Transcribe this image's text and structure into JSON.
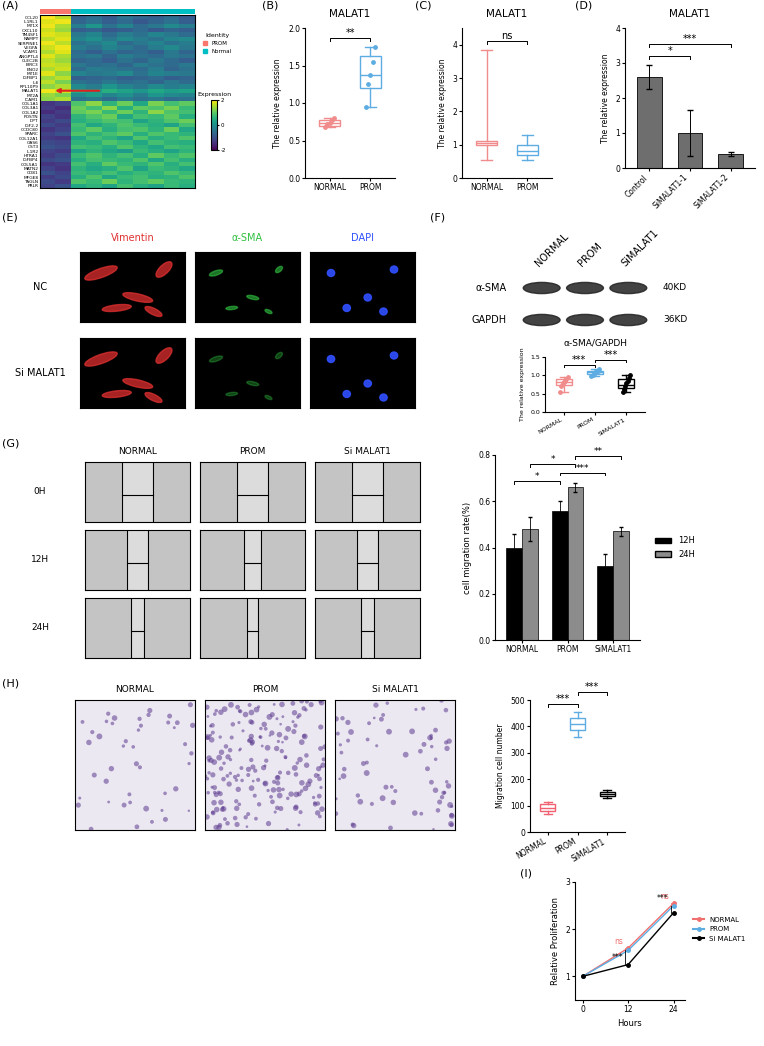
{
  "chart_data": [
    {
      "panel": "(A)",
      "type": "heatmap",
      "rows": [
        "CCL20",
        "IL1RL1",
        "MT1X",
        "CXCL10",
        "TM4SF1",
        "NAMPT",
        "SERPINE1",
        "VEGFA",
        "VCAM1",
        "ANGPTL4",
        "CLEC2B",
        "BIRC3",
        "ENO2",
        "MT1E",
        "IGFBP1",
        "IL6",
        "RPL10P9",
        "MALAT1",
        "MT2A",
        "ICAM1",
        "COL1A1",
        "COL3A1",
        "COL1A2",
        "POSTN",
        "DPT",
        "IGF2-2",
        "CCDC80",
        "SPARC",
        "COL12A1",
        "GAS6",
        "CST3",
        "IL1R2",
        "HTRA1",
        "IGFBP4",
        "COL5A1",
        "MATN2",
        "CD81",
        "MFGE8",
        "TAGLN",
        "PRLR"
      ],
      "column_groups": [
        "PROM",
        "PROM",
        "Normal",
        "Normal",
        "Normal",
        "Normal",
        "Normal",
        "Normal",
        "Normal",
        "Normal"
      ],
      "legend_title": "Identity",
      "series": [
        {
          "name": "PROM",
          "color": "#f8766d"
        },
        {
          "name": "Normal",
          "color": "#00bfc4"
        }
      ],
      "arrow": {
        "row": "MALAT1",
        "color": "#e02020"
      },
      "cells": [
        [
          2.0,
          1.6,
          -0.8,
          -0.6,
          -0.9,
          -0.5,
          -0.7,
          -0.8,
          -0.6,
          -0.9
        ],
        [
          1.8,
          1.9,
          -0.7,
          -0.5,
          -0.8,
          -0.6,
          -0.9,
          -0.7,
          -0.5,
          -0.8
        ],
        [
          1.9,
          1.5,
          -0.3,
          0.1,
          -0.5,
          -0.2,
          -0.6,
          -0.4,
          -0.1,
          -0.3
        ],
        [
          1.7,
          1.4,
          -0.8,
          -0.7,
          -0.9,
          -0.8,
          -0.6,
          -0.9,
          -0.7,
          -0.8
        ],
        [
          1.8,
          1.7,
          -0.4,
          -0.2,
          -0.6,
          -0.3,
          -0.5,
          -0.2,
          -0.4,
          -0.6
        ],
        [
          1.6,
          1.8,
          -0.2,
          0.0,
          -0.4,
          -0.1,
          -0.3,
          -0.5,
          -0.2,
          -0.1
        ],
        [
          1.9,
          1.6,
          -0.5,
          -0.3,
          -0.1,
          -0.6,
          -0.4,
          -0.2,
          -0.5,
          -0.3
        ],
        [
          1.7,
          1.9,
          -0.3,
          -0.5,
          -0.2,
          -0.4,
          -0.6,
          -0.3,
          -0.1,
          -0.4
        ],
        [
          1.5,
          1.8,
          -0.6,
          -0.8,
          -0.5,
          -0.7,
          -0.6,
          -0.8,
          -0.4,
          -0.7
        ],
        [
          1.8,
          1.5,
          -0.5,
          -0.4,
          -0.7,
          -0.3,
          -0.5,
          -0.6,
          -0.4,
          -0.5
        ],
        [
          1.6,
          1.4,
          -0.7,
          -0.6,
          -0.8,
          -0.5,
          -0.7,
          -0.4,
          -0.6,
          -0.8
        ],
        [
          1.7,
          1.6,
          -0.4,
          -0.6,
          -0.5,
          -0.7,
          -0.3,
          -0.5,
          -0.6,
          -0.4
        ],
        [
          1.5,
          1.7,
          -0.6,
          -0.3,
          -0.4,
          -0.5,
          -0.6,
          -0.3,
          -0.7,
          -0.5
        ],
        [
          1.8,
          1.3,
          -0.2,
          -0.4,
          -0.3,
          -0.1,
          -0.5,
          -0.2,
          -0.3,
          -0.4
        ],
        [
          1.4,
          1.6,
          -0.8,
          -0.7,
          -0.6,
          -0.8,
          -0.7,
          -0.6,
          -0.8,
          -0.7
        ],
        [
          1.6,
          1.2,
          -0.5,
          -0.6,
          -0.4,
          -0.6,
          -0.5,
          -0.7,
          -0.4,
          -0.6
        ],
        [
          1.3,
          1.5,
          -0.1,
          -0.3,
          0.1,
          -0.2,
          -0.4,
          -0.1,
          -0.3,
          -0.2
        ],
        [
          1.9,
          1.7,
          0.4,
          0.2,
          0.5,
          0.3,
          0.1,
          0.4,
          0.2,
          0.3
        ],
        [
          1.4,
          1.2,
          -0.1,
          0.2,
          -0.2,
          0.0,
          -0.3,
          0.1,
          -0.1,
          -0.2
        ],
        [
          1.3,
          1.5,
          -0.5,
          -0.4,
          -0.6,
          -0.3,
          -0.5,
          -0.4,
          -0.6,
          -0.5
        ],
        [
          -1.4,
          -1.2,
          0.9,
          1.3,
          0.6,
          1.1,
          0.4,
          1.2,
          0.8,
          1.0
        ],
        [
          -1.3,
          -1.5,
          1.1,
          0.8,
          1.3,
          0.5,
          1.0,
          0.9,
          1.2,
          0.7
        ],
        [
          -1.5,
          -1.3,
          1.0,
          1.2,
          0.7,
          1.1,
          0.6,
          1.3,
          0.9,
          0.8
        ],
        [
          -1.2,
          -1.4,
          0.6,
          0.9,
          1.1,
          0.4,
          0.8,
          0.7,
          1.0,
          0.5
        ],
        [
          -1.3,
          -1.1,
          0.5,
          0.7,
          0.9,
          0.8,
          0.3,
          0.6,
          0.9,
          1.1
        ],
        [
          -1.1,
          -1.3,
          0.8,
          0.4,
          0.6,
          0.9,
          0.7,
          0.5,
          0.3,
          0.8
        ],
        [
          -1.4,
          -1.2,
          0.7,
          1.0,
          0.5,
          0.8,
          0.9,
          0.6,
          1.1,
          0.4
        ],
        [
          -1.2,
          -1.0,
          0.9,
          0.6,
          0.8,
          1.0,
          0.5,
          0.9,
          0.7,
          0.6
        ],
        [
          -1.3,
          -1.4,
          0.4,
          0.8,
          0.6,
          0.3,
          0.9,
          0.5,
          0.7,
          0.9
        ],
        [
          -1.1,
          -1.2,
          0.6,
          0.5,
          0.9,
          0.7,
          0.4,
          0.8,
          0.6,
          0.5
        ],
        [
          -1.0,
          -1.1,
          0.8,
          0.7,
          0.5,
          0.9,
          0.6,
          0.4,
          0.8,
          0.7
        ],
        [
          -1.2,
          -1.3,
          0.3,
          0.6,
          0.4,
          0.2,
          0.7,
          0.5,
          0.3,
          0.6
        ],
        [
          -1.3,
          -1.1,
          0.7,
          0.9,
          0.6,
          0.8,
          0.5,
          1.0,
          0.7,
          0.9
        ],
        [
          -1.1,
          -1.0,
          0.5,
          0.8,
          0.7,
          0.6,
          0.9,
          0.4,
          0.8,
          0.5
        ],
        [
          -1.4,
          -1.3,
          0.8,
          0.5,
          1.0,
          0.7,
          0.6,
          0.9,
          0.5,
          0.8
        ],
        [
          -1.2,
          -1.4,
          0.6,
          0.4,
          0.5,
          0.9,
          0.3,
          0.7,
          0.6,
          0.4
        ],
        [
          -1.0,
          -1.2,
          0.7,
          0.6,
          0.8,
          0.5,
          0.7,
          0.6,
          0.9,
          0.7
        ],
        [
          -1.3,
          -1.1,
          0.5,
          0.9,
          0.4,
          0.7,
          0.8,
          0.5,
          0.6,
          0.9
        ],
        [
          -1.1,
          -1.3,
          0.9,
          0.7,
          1.1,
          0.6,
          0.8,
          1.0,
          0.7,
          0.6
        ],
        [
          -1.2,
          -1.0,
          0.4,
          0.6,
          0.3,
          0.8,
          0.5,
          0.3,
          0.7,
          0.5
        ]
      ],
      "colorbar": {
        "title": "Expression",
        "range": [
          -2,
          2
        ],
        "ticks": [
          -2,
          0,
          2
        ]
      }
    },
    {
      "panel": "(B)",
      "type": "box",
      "title": "MALAT1",
      "y_label": "The relative expression",
      "categories": [
        "NORMAL",
        "PROM"
      ],
      "colors": [
        "#f08c8c",
        "#5dade2"
      ],
      "boxes": [
        {
          "min": 0.68,
          "q1": 0.7,
          "median": 0.74,
          "q3": 0.78,
          "max": 0.8
        },
        {
          "min": 0.95,
          "q1": 1.2,
          "median": 1.38,
          "q3": 1.62,
          "max": 1.75
        }
      ],
      "points": [
        [
          0.68,
          0.72,
          0.74,
          0.77,
          0.8
        ],
        [
          0.95,
          1.25,
          1.38,
          1.55,
          1.75
        ]
      ],
      "ylim": [
        0,
        2
      ],
      "yticks": [
        {
          "value": 0,
          "label": "0.0"
        },
        0.5,
        {
          "value": 1,
          "label": "1.0"
        },
        1.5,
        {
          "value": 2,
          "label": "2.0"
        }
      ],
      "significance": [
        {
          "groups": [
            "NORMAL",
            "PROM"
          ],
          "label": "**"
        }
      ]
    },
    {
      "panel": "(C)",
      "type": "box",
      "title": "MALAT1",
      "y_label": "The relative expression",
      "categories": [
        "NORMAL",
        "PROM"
      ],
      "colors": [
        "#f08c8c",
        "#5dade2"
      ],
      "boxes": [
        {
          "min": 0.55,
          "q1": 1.0,
          "median": 1.05,
          "q3": 1.1,
          "max": 3.85
        },
        {
          "min": 0.55,
          "q1": 0.7,
          "median": 0.8,
          "q3": 1.0,
          "max": 1.3
        }
      ],
      "ylim": [
        0,
        4.5
      ],
      "yticks": [
        0,
        1,
        2,
        3,
        4
      ],
      "significance": [
        {
          "groups": [
            "NORMAL",
            "PROM"
          ],
          "label": "ns"
        }
      ]
    },
    {
      "panel": "(D)",
      "type": "bar",
      "title": "MALAT1",
      "y_label": "The relative expression",
      "categories": [
        "Control",
        "SiMALAT1-1",
        "SiMALAT1-2"
      ],
      "values": [
        2.6,
        1.0,
        0.4
      ],
      "errors": [
        0.35,
        0.65,
        0.05
      ],
      "color": "#6e6e6e",
      "ylim": [
        0,
        4
      ],
      "yticks": [
        0,
        1,
        2,
        3,
        4
      ],
      "significance": [
        {
          "groups": [
            "Control",
            "SiMALAT1-1"
          ],
          "label": "*"
        },
        {
          "groups": [
            "Control",
            "SiMALAT1-2"
          ],
          "label": "***"
        }
      ]
    },
    {
      "panel": "(F)",
      "type": "box",
      "title": "α-SMA/GAPDH",
      "y_label": "The relative expression",
      "categories": [
        "NORMAL",
        "PROM",
        "SiMALAT1"
      ],
      "colors": [
        "#f08c8c",
        "#5dade2",
        "#000000"
      ],
      "boxes": [
        {
          "min": 0.55,
          "q1": 0.75,
          "median": 0.82,
          "q3": 0.9,
          "max": 0.95
        },
        {
          "min": 0.98,
          "q1": 1.03,
          "median": 1.08,
          "q3": 1.12,
          "max": 1.18
        },
        {
          "min": 0.55,
          "q1": 0.65,
          "median": 0.75,
          "q3": 0.9,
          "max": 1.0
        }
      ],
      "points": [
        [
          0.55,
          0.7,
          0.78,
          0.82,
          0.85,
          0.9,
          0.95
        ],
        [
          0.98,
          1.02,
          1.05,
          1.08,
          1.1,
          1.12,
          1.18
        ],
        [
          0.55,
          0.62,
          0.7,
          0.78,
          0.85,
          0.92,
          1.0
        ]
      ],
      "ylim": [
        0,
        1.5
      ],
      "yticks": [
        {
          "value": 0,
          "label": "0.0"
        },
        0.5,
        {
          "value": 1,
          "label": "1.0"
        },
        1.5
      ],
      "significance": [
        {
          "groups": [
            "NORMAL",
            "PROM"
          ],
          "label": "***"
        },
        {
          "groups": [
            "PROM",
            "SiMALAT1"
          ],
          "label": "***"
        }
      ]
    },
    {
      "panel": "(G)",
      "type": "bar",
      "y_label": "cell migration rate(%)",
      "categories": [
        "NORMAL",
        "PROM",
        "SiMALAT1"
      ],
      "series": [
        {
          "name": "12H",
          "color": "#000000",
          "values": [
            0.4,
            0.56,
            0.32
          ],
          "errors": [
            0.06,
            0.04,
            0.05
          ]
        },
        {
          "name": "24H",
          "color": "#8c8c8c",
          "values": [
            0.48,
            0.66,
            0.47
          ],
          "errors": [
            0.05,
            0.02,
            0.02
          ]
        }
      ],
      "legend": "center left",
      "ylim": [
        0,
        0.8
      ],
      "yticks": [
        {
          "value": 0,
          "label": "0.0"
        },
        0.2,
        0.4,
        0.6,
        0.8
      ],
      "significance": [
        {
          "from": [
            "NORMAL",
            "12H"
          ],
          "to": [
            "PROM",
            "12H"
          ],
          "label": "*"
        },
        {
          "from": [
            "PROM",
            "12H"
          ],
          "to": [
            "SiMALAT1",
            "12H"
          ],
          "label": "***"
        },
        {
          "from": [
            "NORMAL",
            "24H"
          ],
          "to": [
            "PROM",
            "24H"
          ],
          "label": "*"
        },
        {
          "from": [
            "PROM",
            "24H"
          ],
          "to": [
            "SiMALAT1",
            "24H"
          ],
          "label": "**"
        }
      ]
    },
    {
      "panel": "(H)",
      "type": "box",
      "y_label": "Migration cell number",
      "categories": [
        "NORMAL",
        "PROM",
        "SiMALAT1"
      ],
      "colors": [
        "#f06070",
        "#5dade2",
        "#000000"
      ],
      "boxes": [
        {
          "min": 70,
          "q1": 80,
          "median": 90,
          "q3": 105,
          "max": 115
        },
        {
          "min": 360,
          "q1": 385,
          "median": 410,
          "q3": 430,
          "max": 455
        },
        {
          "min": 130,
          "q1": 138,
          "median": 145,
          "q3": 152,
          "max": 160
        }
      ],
      "ylim": [
        0,
        500
      ],
      "yticks": [
        0,
        100,
        200,
        300,
        400,
        500
      ],
      "significance": [
        {
          "groups": [
            "NORMAL",
            "PROM"
          ],
          "label": "***"
        },
        {
          "groups": [
            "PROM",
            "SiMALAT1"
          ],
          "label": "***"
        }
      ]
    },
    {
      "panel": "(I)",
      "type": "line",
      "x_label": "Hours",
      "y_label": "Relative Proliferation",
      "x": [
        0,
        12,
        24
      ],
      "series": [
        {
          "name": "NORMAL",
          "color": "#f07070",
          "values": [
            1.0,
            1.6,
            2.55
          ]
        },
        {
          "name": "PROM",
          "color": "#5dade2",
          "values": [
            1.0,
            1.55,
            2.5
          ]
        },
        {
          "name": "Si MALAT1",
          "color": "#000000",
          "values": [
            1.0,
            1.25,
            2.35
          ]
        }
      ],
      "marker": "o",
      "legend": "center left",
      "xlim": [
        -2,
        27
      ],
      "xticks": [
        0,
        12,
        24
      ],
      "ylim": [
        0.5,
        3
      ],
      "yticks": [
        1,
        2,
        3
      ],
      "annotations": [
        {
          "x": 12,
          "series": [
            "NORMAL",
            "PROM"
          ],
          "label": "ns",
          "color": "#f07070"
        },
        {
          "x": 12,
          "series": [
            "PROM",
            "Si MALAT1"
          ],
          "label": "***",
          "color": "#000000"
        },
        {
          "x": 24,
          "series": [
            "NORMAL",
            "PROM"
          ],
          "label": "ns",
          "color": "#f07070"
        },
        {
          "x": 24,
          "series": [
            "PROM",
            "Si MALAT1"
          ],
          "label": "***",
          "color": "#000000"
        }
      ]
    }
  ],
  "image_panels": [
    {
      "panel": "(E)",
      "type": "fluorescence",
      "columns": [
        "Vimentin",
        "α-SMA",
        "DAPI"
      ],
      "rows": [
        "NC",
        "Si MALAT1"
      ],
      "colors": [
        "#e03030",
        "#30c040",
        "#3050ff"
      ]
    },
    {
      "panel": "(F)",
      "type": "blot",
      "lanes": [
        "NORMAL",
        "PROM",
        "SiMALAT1"
      ],
      "bands": [
        {
          "name": "α-SMA",
          "size": "40KD"
        },
        {
          "name": "GAPDH",
          "size": "36KD"
        }
      ]
    },
    {
      "panel": "(G)",
      "type": "wound",
      "columns": [
        "NORMAL",
        "PROM",
        "Si MALAT1"
      ],
      "rows": [
        "0H",
        "12H",
        "24H"
      ]
    },
    {
      "panel": "(H)",
      "type": "transwell",
      "columns": [
        "NORMAL",
        "PROM",
        "Si MALAT1"
      ]
    }
  ]
}
